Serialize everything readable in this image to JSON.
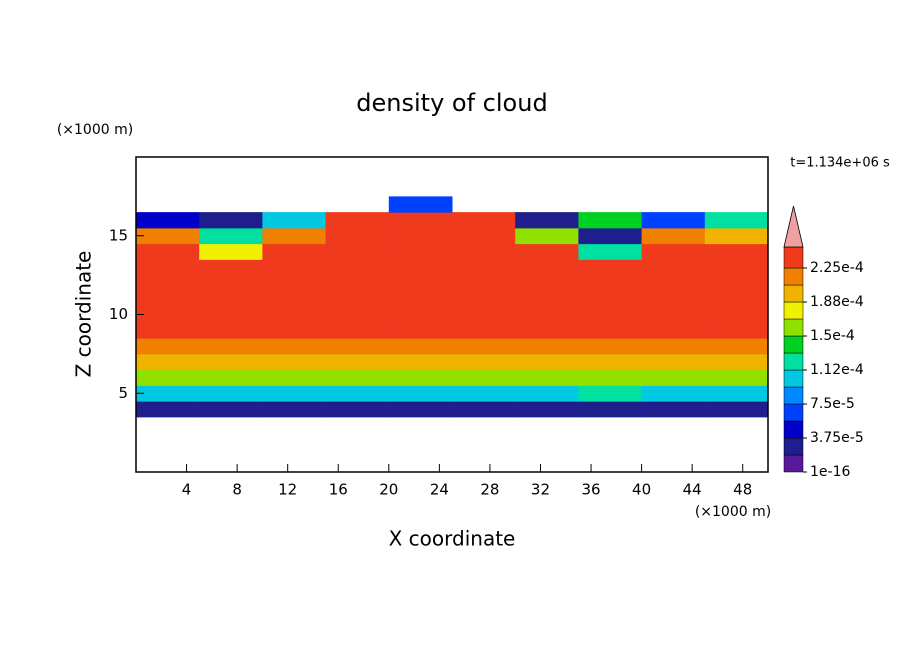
{
  "chart_data": {
    "type": "contour",
    "title": "density of cloud",
    "x_label": "X coordinate",
    "y_label": "Z coordinate",
    "x_unit": "(×1000 m)",
    "y_unit": "(×1000 m)",
    "time_label": "t=1.134e+06 s",
    "xlim": [
      0,
      50
    ],
    "ylim": [
      0,
      20
    ],
    "xticks": [
      4,
      8,
      12,
      16,
      20,
      24,
      28,
      32,
      36,
      40,
      44,
      48
    ],
    "yticks": [
      5,
      10,
      15
    ],
    "x": [
      2.5,
      7.5,
      12.5,
      17.5,
      22.5,
      27.5,
      32.5,
      37.5,
      42.5,
      47.5
    ],
    "z": [
      4,
      5,
      6,
      7,
      8,
      9,
      10,
      11,
      12,
      13,
      14,
      15,
      16,
      17
    ],
    "values": [
      [
        2.5e-05,
        2.5e-05,
        2.5e-05,
        2.5e-05,
        2.5e-05,
        2.5e-05,
        2.5e-05,
        2.5e-05,
        2.5e-05,
        2.5e-05
      ],
      [
        0.0001,
        0.0001,
        0.0001,
        0.0001,
        0.0001,
        0.0001,
        0.0001,
        0.00013,
        0.0001,
        0.0001
      ],
      [
        0.00016,
        0.00016,
        0.00016,
        0.00016,
        0.00016,
        0.00016,
        0.00016,
        0.00016,
        0.00016,
        0.00016
      ],
      [
        0.0002,
        0.0002,
        0.0002,
        0.0002,
        0.0002,
        0.0002,
        0.0002,
        0.0002,
        0.0002,
        0.0002
      ],
      [
        0.00022,
        0.00022,
        0.00022,
        0.00022,
        0.00022,
        0.00022,
        0.00022,
        0.00022,
        0.00022,
        0.00022
      ],
      [
        0.00023,
        0.00023,
        0.00023,
        0.00023,
        0.00023,
        0.00023,
        0.00023,
        0.00023,
        0.00023,
        0.00023
      ],
      [
        0.00023,
        0.00023,
        0.00023,
        0.00023,
        0.00023,
        0.00023,
        0.00023,
        0.00023,
        0.00023,
        0.00023
      ],
      [
        0.00023,
        0.00023,
        0.00023,
        0.00023,
        0.00023,
        0.00023,
        0.00023,
        0.00023,
        0.00023,
        0.00023
      ],
      [
        0.00023,
        0.00023,
        0.00023,
        0.00023,
        0.00023,
        0.00023,
        0.00023,
        0.00023,
        0.00023,
        0.00023
      ],
      [
        0.00023,
        0.00023,
        0.00023,
        0.00023,
        0.00023,
        0.00023,
        0.00023,
        0.00023,
        0.00023,
        0.00023
      ],
      [
        0.00023,
        0.00017,
        0.00023,
        0.00023,
        0.00023,
        0.00023,
        0.00023,
        0.00012,
        0.00023,
        0.00023
      ],
      [
        0.00021,
        0.00013,
        0.00022,
        0.00023,
        0.00023,
        0.00023,
        0.00016,
        3e-05,
        0.00021,
        0.0002
      ],
      [
        4e-05,
        2e-05,
        0.00011,
        0.00023,
        0.00023,
        0.00023,
        3e-05,
        0.00014,
        6e-05,
        0.00012
      ],
      [
        null,
        null,
        null,
        null,
        6e-05,
        null,
        null,
        null,
        null,
        null
      ]
    ],
    "colorbar": {
      "levels": [
        1e-16,
        1.875e-05,
        3.75e-05,
        5.625e-05,
        7.5e-05,
        9.375e-05,
        0.0001125,
        0.00013125,
        0.00015,
        0.00016875,
        0.0001875,
        0.00020625,
        0.000225
      ],
      "colors": [
        "#5a189a",
        "#1e1e8c",
        "#0000c8",
        "#0040ff",
        "#0088ff",
        "#00c8e0",
        "#00e0a0",
        "#00d020",
        "#90e000",
        "#f0f000",
        "#f0b400",
        "#f08000",
        "#f03a1e"
      ],
      "extend_color": "#f0a0a0",
      "ticks": [
        {
          "value": 1e-16,
          "label": "1e-16"
        },
        {
          "value": 3.75e-05,
          "label": "3.75e-5"
        },
        {
          "value": 7.5e-05,
          "label": "7.5e-5"
        },
        {
          "value": 0.0001125,
          "label": "1.12e-4"
        },
        {
          "value": 0.00015,
          "label": "1.5e-4"
        },
        {
          "value": 0.0001875,
          "label": "1.88e-4"
        },
        {
          "value": 0.000225,
          "label": "2.25e-4"
        }
      ]
    }
  }
}
